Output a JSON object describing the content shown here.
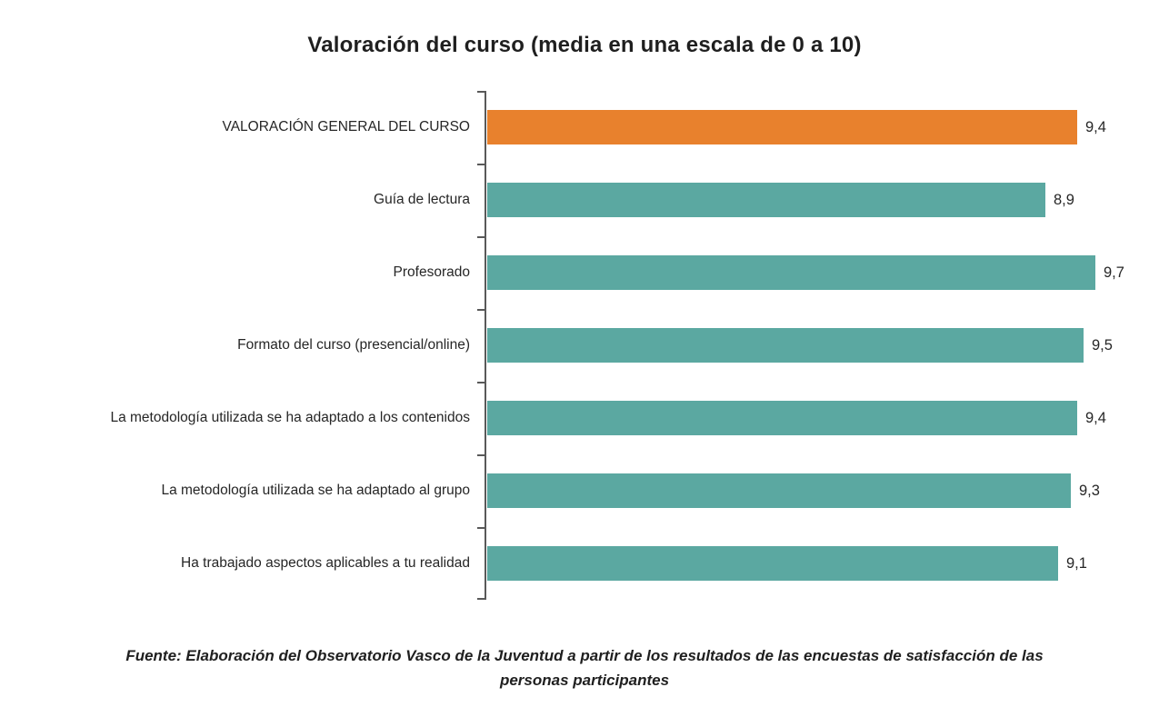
{
  "chart_data": {
    "type": "bar",
    "orientation": "horizontal",
    "title": "Valoración del curso (media en una escala de 0 a 10)",
    "categories": [
      "VALORACIÓN GENERAL DEL CURSO",
      "Guía de lectura",
      "Profesorado",
      "Formato del curso (presencial/online)",
      "La metodología utilizada se ha adaptado a los contenidos",
      "La metodología utilizada se ha adaptado al grupo",
      "Ha trabajado aspectos aplicables a tu realidad"
    ],
    "values": [
      9.4,
      8.9,
      9.7,
      9.5,
      9.4,
      9.3,
      9.1
    ],
    "value_labels": [
      "9,4",
      "8,9",
      "9,7",
      "9,5",
      "9,4",
      "9,3",
      "9,1"
    ],
    "xlim": [
      0,
      10
    ],
    "highlight_index": 0,
    "legend": "none",
    "grid": "off",
    "colors": {
      "highlight": "#E8812D",
      "default": "#5BA8A1",
      "axis": "#595959"
    }
  },
  "source": {
    "text": "Fuente: Elaboración del Observatorio Vasco de la Juventud a partir de los resultados de las encuestas de satisfacción de las personas participantes"
  }
}
